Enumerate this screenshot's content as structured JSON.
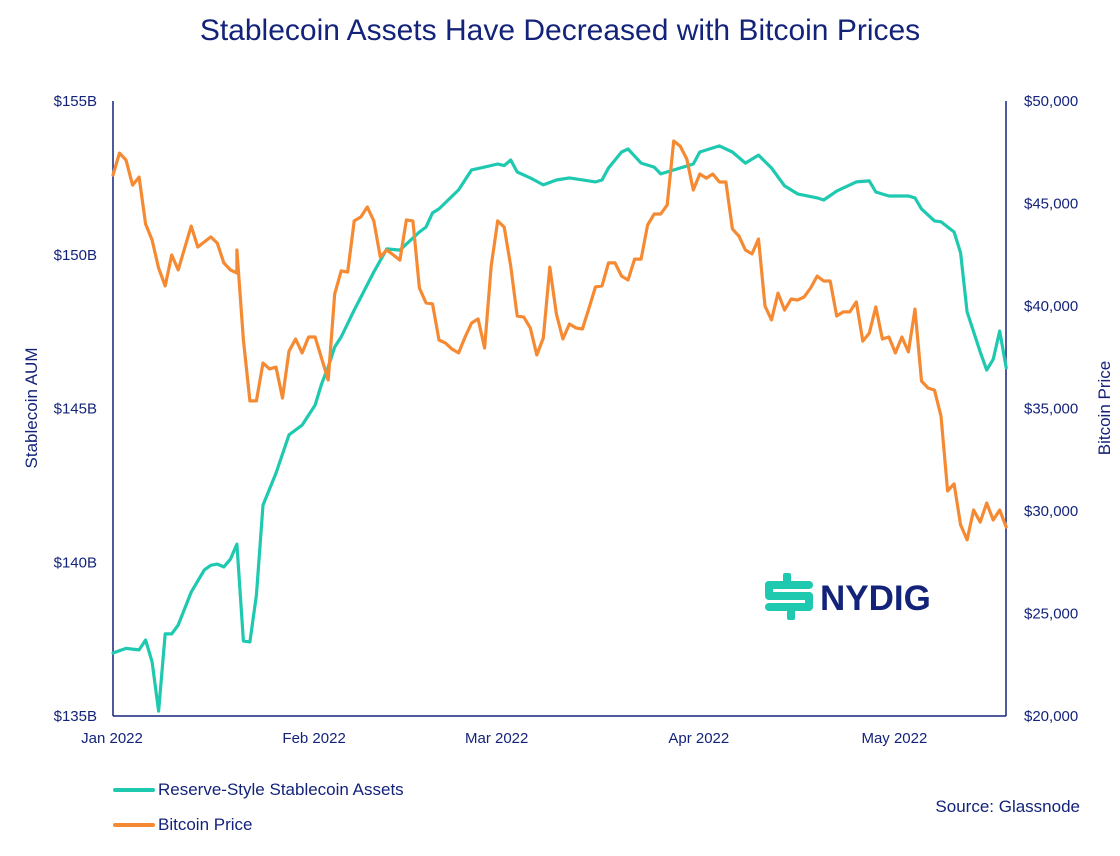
{
  "chart_data": {
    "type": "line",
    "title": "Stablecoin Assets Have Decreased with Bitcoin Prices",
    "ylabel_left": "Stablecoin AUM",
    "ylabel_right": "Bitcoin Price",
    "xlim": [
      "2022-01-01",
      "2022-05-18"
    ],
    "x_ticks": [
      {
        "date": "2022-01-01",
        "label": "Jan 2022"
      },
      {
        "date": "2022-02-01",
        "label": "Feb 2022"
      },
      {
        "date": "2022-03-01",
        "label": "Mar 2022"
      },
      {
        "date": "2022-04-01",
        "label": "Apr 2022"
      },
      {
        "date": "2022-05-01",
        "label": "May 2022"
      }
    ],
    "ylim_left": [
      135,
      155
    ],
    "y_ticks_left": [
      {
        "value": 155,
        "label": "$155B"
      },
      {
        "value": 150,
        "label": "$150B"
      },
      {
        "value": 145,
        "label": "$145B"
      },
      {
        "value": 140,
        "label": "$140B"
      },
      {
        "value": 135,
        "label": "$135B"
      }
    ],
    "ylim_right": [
      20000,
      50000
    ],
    "y_ticks_right": [
      {
        "value": 50000,
        "label": "$50,000"
      },
      {
        "value": 45000,
        "label": "$45,000"
      },
      {
        "value": 40000,
        "label": "$40,000"
      },
      {
        "value": 35000,
        "label": "$35,000"
      },
      {
        "value": 30000,
        "label": "$30,000"
      },
      {
        "value": 25000,
        "label": "$25,000"
      },
      {
        "value": 20000,
        "label": "$20,000"
      }
    ],
    "grid": false,
    "legend_position": "bottom-left",
    "series": [
      {
        "name": "Reserve-Style Stablecoin Assets",
        "axis": "left",
        "unit": "$B",
        "color": "#1ec9b0",
        "points": [
          [
            "2022-01-01",
            137.05
          ],
          [
            "2022-01-03",
            137.2
          ],
          [
            "2022-01-05",
            137.15
          ],
          [
            "2022-01-06",
            137.47
          ],
          [
            "2022-01-07",
            136.76
          ],
          [
            "2022-01-08",
            135.16
          ],
          [
            "2022-01-09",
            137.67
          ],
          [
            "2022-01-10",
            137.67
          ],
          [
            "2022-01-11",
            137.96
          ],
          [
            "2022-01-13",
            139.03
          ],
          [
            "2022-01-15",
            139.75
          ],
          [
            "2022-01-16",
            139.9
          ],
          [
            "2022-01-17",
            139.94
          ],
          [
            "2022-01-18",
            139.85
          ],
          [
            "2022-01-19",
            140.1
          ],
          [
            "2022-01-20",
            140.59
          ],
          [
            "2022-01-21",
            137.44
          ],
          [
            "2022-01-22",
            137.41
          ],
          [
            "2022-01-23",
            138.93
          ],
          [
            "2022-01-24",
            141.86
          ],
          [
            "2022-01-26",
            142.9
          ],
          [
            "2022-01-28",
            144.14
          ],
          [
            "2022-01-30",
            144.46
          ],
          [
            "2022-02-01",
            145.11
          ],
          [
            "2022-02-02",
            145.8
          ],
          [
            "2022-02-03",
            146.35
          ],
          [
            "2022-02-04",
            147.0
          ],
          [
            "2022-02-05",
            147.33
          ],
          [
            "2022-02-07",
            148.2
          ],
          [
            "2022-02-10",
            149.44
          ],
          [
            "2022-02-12",
            150.19
          ],
          [
            "2022-02-14",
            150.15
          ],
          [
            "2022-02-17",
            150.74
          ],
          [
            "2022-02-18",
            150.9
          ],
          [
            "2022-02-19",
            151.36
          ],
          [
            "2022-02-20",
            151.49
          ],
          [
            "2022-02-23",
            152.11
          ],
          [
            "2022-02-25",
            152.76
          ],
          [
            "2022-02-27",
            152.85
          ],
          [
            "2022-03-01",
            152.95
          ],
          [
            "2022-03-02",
            152.9
          ],
          [
            "2022-03-03",
            153.08
          ],
          [
            "2022-03-04",
            152.69
          ],
          [
            "2022-03-06",
            152.5
          ],
          [
            "2022-03-08",
            152.27
          ],
          [
            "2022-03-10",
            152.43
          ],
          [
            "2022-03-12",
            152.5
          ],
          [
            "2022-03-16",
            152.37
          ],
          [
            "2022-03-17",
            152.43
          ],
          [
            "2022-03-18",
            152.82
          ],
          [
            "2022-03-20",
            153.34
          ],
          [
            "2022-03-21",
            153.44
          ],
          [
            "2022-03-23",
            152.98
          ],
          [
            "2022-03-25",
            152.85
          ],
          [
            "2022-03-26",
            152.63
          ],
          [
            "2022-03-29",
            152.82
          ],
          [
            "2022-03-31",
            152.95
          ],
          [
            "2022-04-01",
            153.34
          ],
          [
            "2022-04-04",
            153.54
          ],
          [
            "2022-04-06",
            153.34
          ],
          [
            "2022-04-08",
            152.98
          ],
          [
            "2022-04-10",
            153.24
          ],
          [
            "2022-04-12",
            152.82
          ],
          [
            "2022-04-14",
            152.24
          ],
          [
            "2022-04-16",
            151.98
          ],
          [
            "2022-04-19",
            151.85
          ],
          [
            "2022-04-20",
            151.78
          ],
          [
            "2022-04-22",
            152.07
          ],
          [
            "2022-04-25",
            152.37
          ],
          [
            "2022-04-27",
            152.4
          ],
          [
            "2022-04-28",
            152.04
          ],
          [
            "2022-04-30",
            151.91
          ],
          [
            "2022-05-03",
            151.91
          ],
          [
            "2022-05-04",
            151.85
          ],
          [
            "2022-05-05",
            151.49
          ],
          [
            "2022-05-07",
            151.1
          ],
          [
            "2022-05-08",
            151.07
          ],
          [
            "2022-05-10",
            150.74
          ],
          [
            "2022-05-11",
            150.06
          ],
          [
            "2022-05-12",
            148.14
          ],
          [
            "2022-05-14",
            146.84
          ],
          [
            "2022-05-15",
            146.25
          ],
          [
            "2022-05-16",
            146.6
          ],
          [
            "2022-05-17",
            147.52
          ],
          [
            "2022-05-18",
            146.32
          ]
        ]
      },
      {
        "name": "Bitcoin Price",
        "axis": "right",
        "unit": "$",
        "color": "#f58a33",
        "points": [
          [
            "2022-01-01",
            46390
          ],
          [
            "2022-01-02",
            47460
          ],
          [
            "2022-01-03",
            47120
          ],
          [
            "2022-01-04",
            45900
          ],
          [
            "2022-01-05",
            46290
          ],
          [
            "2022-01-06",
            44000
          ],
          [
            "2022-01-07",
            43220
          ],
          [
            "2022-01-08",
            41850
          ],
          [
            "2022-01-09",
            40980
          ],
          [
            "2022-01-10",
            42490
          ],
          [
            "2022-01-11",
            41760
          ],
          [
            "2022-01-13",
            43900
          ],
          [
            "2022-01-14",
            42880
          ],
          [
            "2022-01-16",
            43370
          ],
          [
            "2022-01-17",
            43070
          ],
          [
            "2022-01-18",
            42100
          ],
          [
            "2022-01-19",
            41760
          ],
          [
            "2022-01-20",
            41610
          ],
          [
            "2022-01-20",
            42730
          ],
          [
            "2022-01-21",
            38340
          ],
          [
            "2022-01-22",
            35370
          ],
          [
            "2022-01-23",
            35370
          ],
          [
            "2022-01-24",
            37220
          ],
          [
            "2022-01-25",
            36930
          ],
          [
            "2022-01-26",
            37020
          ],
          [
            "2022-01-27",
            35510
          ],
          [
            "2022-01-28",
            37800
          ],
          [
            "2022-01-29",
            38390
          ],
          [
            "2022-01-30",
            37710
          ],
          [
            "2022-01-31",
            38490
          ],
          [
            "2022-02-01",
            38490
          ],
          [
            "2022-02-03",
            36390
          ],
          [
            "2022-02-04",
            40590
          ],
          [
            "2022-02-05",
            41710
          ],
          [
            "2022-02-06",
            41660
          ],
          [
            "2022-02-07",
            44150
          ],
          [
            "2022-02-08",
            44340
          ],
          [
            "2022-02-09",
            44830
          ],
          [
            "2022-02-10",
            44150
          ],
          [
            "2022-02-11",
            42390
          ],
          [
            "2022-02-12",
            42730
          ],
          [
            "2022-02-13",
            42490
          ],
          [
            "2022-02-14",
            42240
          ],
          [
            "2022-02-15",
            44200
          ],
          [
            "2022-02-16",
            44150
          ],
          [
            "2022-02-17",
            40880
          ],
          [
            "2022-02-18",
            40150
          ],
          [
            "2022-02-19",
            40100
          ],
          [
            "2022-02-20",
            38340
          ],
          [
            "2022-02-21",
            38190
          ],
          [
            "2022-02-22",
            37900
          ],
          [
            "2022-02-23",
            37710
          ],
          [
            "2022-02-24",
            38490
          ],
          [
            "2022-02-25",
            39170
          ],
          [
            "2022-02-26",
            39370
          ],
          [
            "2022-02-27",
            37950
          ],
          [
            "2022-02-28",
            41950
          ],
          [
            "2022-03-01",
            44150
          ],
          [
            "2022-03-02",
            43850
          ],
          [
            "2022-03-03",
            41950
          ],
          [
            "2022-03-04",
            39510
          ],
          [
            "2022-03-05",
            39460
          ],
          [
            "2022-03-06",
            38930
          ],
          [
            "2022-03-07",
            37610
          ],
          [
            "2022-03-08",
            38440
          ],
          [
            "2022-03-09",
            41900
          ],
          [
            "2022-03-10",
            39610
          ],
          [
            "2022-03-11",
            38390
          ],
          [
            "2022-03-12",
            39120
          ],
          [
            "2022-03-13",
            38930
          ],
          [
            "2022-03-14",
            38880
          ],
          [
            "2022-03-15",
            39900
          ],
          [
            "2022-03-16",
            40930
          ],
          [
            "2022-03-17",
            40980
          ],
          [
            "2022-03-18",
            42100
          ],
          [
            "2022-03-19",
            42100
          ],
          [
            "2022-03-20",
            41460
          ],
          [
            "2022-03-21",
            41270
          ],
          [
            "2022-03-22",
            42290
          ],
          [
            "2022-03-23",
            42290
          ],
          [
            "2022-03-24",
            43950
          ],
          [
            "2022-03-25",
            44490
          ],
          [
            "2022-03-26",
            44490
          ],
          [
            "2022-03-27",
            44930
          ],
          [
            "2022-03-28",
            48050
          ],
          [
            "2022-03-29",
            47800
          ],
          [
            "2022-03-30",
            47170
          ],
          [
            "2022-03-31",
            45660
          ],
          [
            "2022-04-01",
            46440
          ],
          [
            "2022-04-02",
            46240
          ],
          [
            "2022-04-03",
            46440
          ],
          [
            "2022-04-04",
            46050
          ],
          [
            "2022-04-05",
            46050
          ],
          [
            "2022-04-06",
            43760
          ],
          [
            "2022-04-07",
            43410
          ],
          [
            "2022-04-08",
            42730
          ],
          [
            "2022-04-09",
            42540
          ],
          [
            "2022-04-10",
            43270
          ],
          [
            "2022-04-11",
            40000
          ],
          [
            "2022-04-12",
            39320
          ],
          [
            "2022-04-13",
            40630
          ],
          [
            "2022-04-14",
            39800
          ],
          [
            "2022-04-15",
            40340
          ],
          [
            "2022-04-16",
            40290
          ],
          [
            "2022-04-17",
            40440
          ],
          [
            "2022-04-18",
            40880
          ],
          [
            "2022-04-19",
            41460
          ],
          [
            "2022-04-20",
            41220
          ],
          [
            "2022-04-21",
            41220
          ],
          [
            "2022-04-22",
            39510
          ],
          [
            "2022-04-23",
            39710
          ],
          [
            "2022-04-24",
            39710
          ],
          [
            "2022-04-25",
            40200
          ],
          [
            "2022-04-26",
            38290
          ],
          [
            "2022-04-27",
            38680
          ],
          [
            "2022-04-28",
            39950
          ],
          [
            "2022-04-29",
            38390
          ],
          [
            "2022-04-30",
            38490
          ],
          [
            "2022-05-01",
            37710
          ],
          [
            "2022-05-02",
            38490
          ],
          [
            "2022-05-03",
            37760
          ],
          [
            "2022-05-04",
            39850
          ],
          [
            "2022-05-05",
            36340
          ],
          [
            "2022-05-06",
            36000
          ],
          [
            "2022-05-07",
            35900
          ],
          [
            "2022-05-08",
            34630
          ],
          [
            "2022-05-09",
            30980
          ],
          [
            "2022-05-10",
            31320
          ],
          [
            "2022-05-11",
            29320
          ],
          [
            "2022-05-12",
            28590
          ],
          [
            "2022-05-13",
            30050
          ],
          [
            "2022-05-14",
            29460
          ],
          [
            "2022-05-15",
            30390
          ],
          [
            "2022-05-16",
            29560
          ],
          [
            "2022-05-17",
            30050
          ],
          [
            "2022-05-18",
            29220
          ]
        ]
      }
    ],
    "source": "Source: Glassnode",
    "logo_text": "NYDIG"
  },
  "colors": {
    "axis": "#14237a",
    "teal": "#1ec9b0",
    "orange": "#f58a33",
    "navy": "#14237a"
  }
}
